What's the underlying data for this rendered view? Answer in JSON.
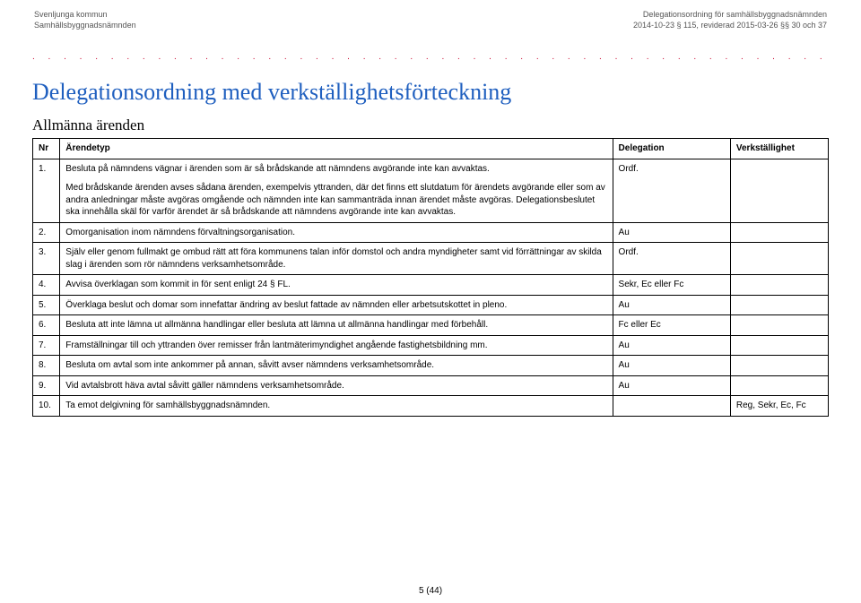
{
  "header": {
    "left1": "Svenljunga kommun",
    "left2": "Samhällsbyggnadsnämnden",
    "right1": "Delegationsordning för samhällsbyggnadsnämnden",
    "right2": "2014-10-23 § 115, reviderad 2015-03-26 §§ 30 och 37"
  },
  "dotsColor": "#c8002a",
  "title": "Delegationsordning med verkställighetsförteckning",
  "subtitle": "Allmänna ärenden",
  "columns": {
    "nr": "Nr",
    "type": "Ärendetyp",
    "delegation": "Delegation",
    "verk": "Verkställighet"
  },
  "rows": [
    {
      "nr": "1.",
      "text": "Besluta på nämndens vägnar i ärenden som är så brådskande att nämndens avgörande inte kan avvaktas.",
      "detail": "Med brådskande ärenden avses sådana ärenden, exempelvis yttranden, där det finns ett slutdatum för ärendets avgörande eller som av andra anledningar måste avgöras omgående och nämnden inte kan sammanträda innan ärendet måste avgöras. Delegationsbeslutet ska innehålla skäl för varför ärendet är så brådskande att nämndens avgörande inte kan avvaktas.",
      "delegation": "Ordf.",
      "verk": ""
    },
    {
      "nr": "2.",
      "text": "Omorganisation inom nämndens förvaltningsorganisation.",
      "delegation": "Au",
      "verk": ""
    },
    {
      "nr": "3.",
      "text": "Själv eller genom fullmakt ge ombud rätt att föra kommunens talan inför domstol och andra myndigheter samt vid förrättningar av skilda slag i ärenden som rör nämndens verksamhetsområde.",
      "delegation": "Ordf.",
      "verk": ""
    },
    {
      "nr": "4.",
      "text": "Avvisa överklagan som kommit in för sent enligt 24 § FL.",
      "delegation": "Sekr, Ec eller Fc",
      "verk": ""
    },
    {
      "nr": "5.",
      "text": "Överklaga beslut och domar som innefattar ändring av beslut fattade av nämnden eller arbetsutskottet in pleno.",
      "delegation": "Au",
      "verk": ""
    },
    {
      "nr": "6.",
      "text": "Besluta att inte lämna ut allmänna handlingar eller besluta att lämna ut allmänna handlingar med förbehåll.",
      "delegation": "Fc eller Ec",
      "verk": ""
    },
    {
      "nr": "7.",
      "text": "Framställningar till och yttranden över remisser från lantmäterimyndighet angående fastighetsbildning mm.",
      "delegation": "Au",
      "verk": ""
    },
    {
      "nr": "8.",
      "text": "Besluta om avtal som inte ankommer på annan, såvitt avser nämndens verksamhetsområde.",
      "delegation": "Au",
      "verk": ""
    },
    {
      "nr": "9.",
      "text": "Vid avtalsbrott häva avtal såvitt gäller nämndens verksamhetsområde.",
      "delegation": "Au",
      "verk": ""
    },
    {
      "nr": "10.",
      "text": "Ta emot delgivning för samhällsbyggnadsnämnden.",
      "delegation": "",
      "verk": "Reg, Sekr, Ec, Fc"
    }
  ],
  "pagenum": "5 (44)"
}
